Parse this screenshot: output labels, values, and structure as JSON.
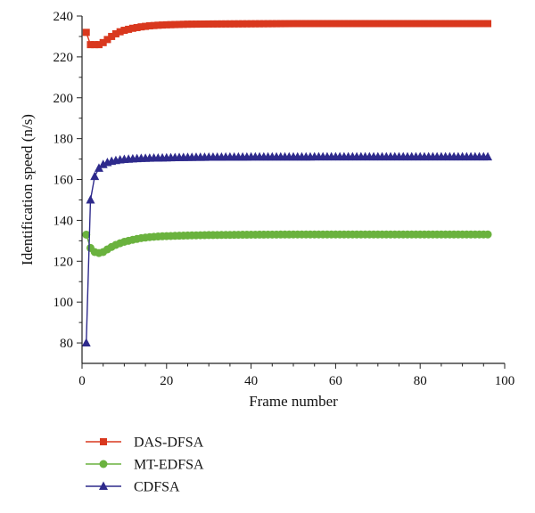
{
  "chart_data": {
    "type": "line",
    "xlabel": "Frame number",
    "ylabel": "Identification speed (n/s)",
    "xlim": [
      0,
      100
    ],
    "ylim": [
      70,
      240
    ],
    "xticks": [
      0,
      20,
      40,
      60,
      80,
      100
    ],
    "yticks": [
      80,
      100,
      120,
      140,
      160,
      180,
      200,
      220,
      240
    ],
    "grid": false,
    "legend_position": "bottom-left",
    "series": [
      {
        "name": "DAS-DFSA",
        "color": "#d9381e",
        "marker": "square",
        "x": [
          1,
          2,
          3,
          4,
          5,
          6,
          7,
          8,
          9,
          10,
          12,
          14,
          16,
          18,
          20,
          25,
          30,
          40,
          50,
          60,
          70,
          80,
          90,
          96
        ],
        "y": [
          232,
          226,
          226,
          226,
          227,
          228.5,
          230,
          231.3,
          232.3,
          233,
          234,
          234.7,
          235.2,
          235.5,
          235.7,
          236,
          236.1,
          236.2,
          236.3,
          236.3,
          236.3,
          236.3,
          236.3,
          236.3
        ]
      },
      {
        "name": "MT-EDFSA",
        "color": "#6ab23e",
        "marker": "circle",
        "x": [
          1,
          2,
          3,
          4,
          5,
          6,
          7,
          8,
          9,
          10,
          12,
          14,
          16,
          18,
          20,
          25,
          30,
          40,
          50,
          60,
          70,
          80,
          90,
          96
        ],
        "y": [
          133,
          126.5,
          124.5,
          124,
          124.5,
          125.8,
          127,
          128,
          128.8,
          129.5,
          130.5,
          131.3,
          131.8,
          132.1,
          132.3,
          132.6,
          132.8,
          133,
          133.1,
          133.1,
          133.1,
          133.1,
          133.1,
          133.1
        ]
      },
      {
        "name": "CDFSA",
        "color": "#2e2a8c",
        "marker": "triangle",
        "x": [
          1,
          2,
          3,
          4,
          5,
          6,
          7,
          8,
          9,
          10,
          12,
          14,
          16,
          18,
          20,
          25,
          30,
          40,
          50,
          60,
          70,
          80,
          90,
          96
        ],
        "y": [
          80,
          150,
          161.5,
          165.5,
          167.3,
          168.3,
          168.9,
          169.3,
          169.6,
          169.8,
          170.1,
          170.3,
          170.4,
          170.5,
          170.6,
          170.8,
          170.9,
          171,
          171,
          171.1,
          171.1,
          171.1,
          171.1,
          171.1
        ]
      }
    ]
  }
}
